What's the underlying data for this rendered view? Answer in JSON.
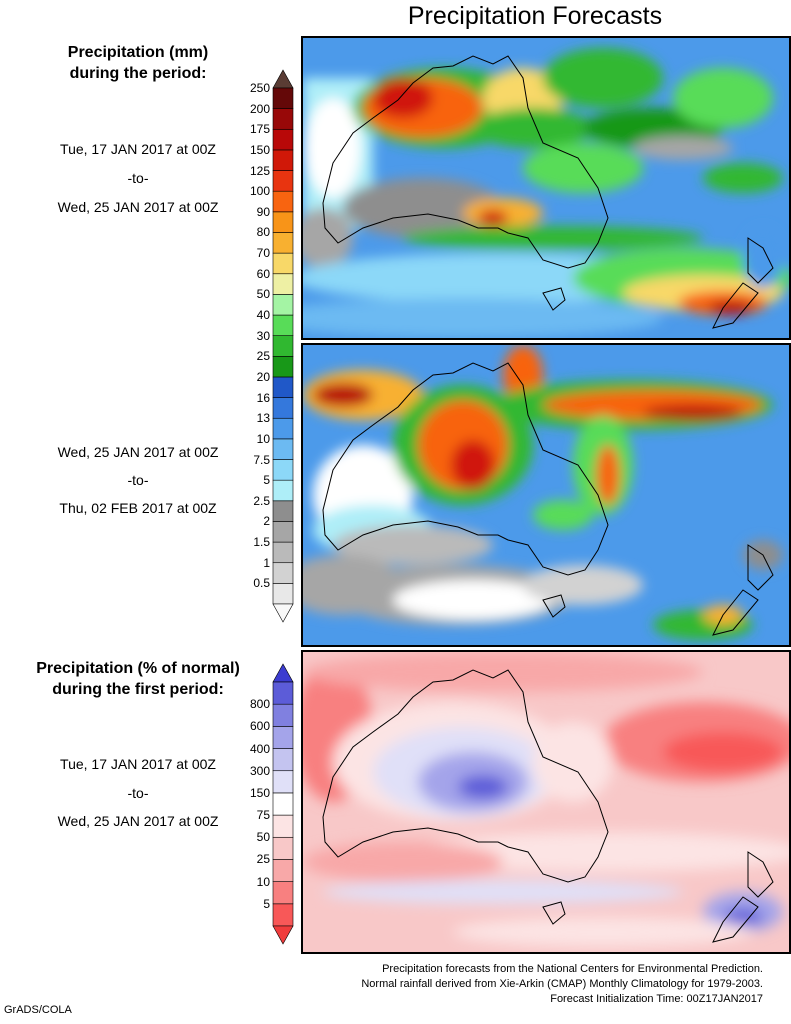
{
  "figure": {
    "title": "Precipitation Forecasts",
    "footer": [
      "Precipitation forecasts from the National Centers for Environmental Prediction.",
      "Normal rainfall derived from Xie-Arkin (CMAP) Monthly Climatology for 1979-2003.",
      "Forecast Initialization Time: 00Z17JAN2017"
    ],
    "brand": "GrADS/COLA"
  },
  "precip_legend": {
    "heading_line1": "Precipitation (mm)",
    "heading_line2": "during the period:",
    "levels": [
      "0.5",
      "1",
      "1.5",
      "2",
      "2.5",
      "5",
      "7.5",
      "10",
      "13",
      "16",
      "20",
      "25",
      "30",
      "40",
      "50",
      "60",
      "70",
      "80",
      "90",
      "100",
      "125",
      "150",
      "175",
      "200",
      "250"
    ],
    "colors": [
      "#e8e8e8",
      "#d2d2d2",
      "#bababa",
      "#a6a6a6",
      "#8e8e8e",
      "#aeeef8",
      "#8cd8f8",
      "#6cbaf2",
      "#4c9aea",
      "#3478dc",
      "#2058c8",
      "#189818",
      "#30b830",
      "#58dc58",
      "#a4f4a4",
      "#eef0a4",
      "#f8d868",
      "#f8b030",
      "#f89418",
      "#f86410",
      "#e83410",
      "#d01808",
      "#b80808",
      "#980808",
      "#640808"
    ],
    "bottom_arrow_color": "#f8f8f8",
    "top_arrow_color": "#5a3c34"
  },
  "period1": {
    "start": "Tue, 17 JAN 2017 at 00Z",
    "sep": "-to-",
    "end": "Wed, 25 JAN 2017 at 00Z"
  },
  "period2": {
    "start": "Wed, 25 JAN 2017 at 00Z",
    "sep": "-to-",
    "end": "Thu, 02 FEB 2017 at 00Z"
  },
  "anomaly_legend": {
    "heading_line1": "Precipitation (% of normal)",
    "heading_line2": "during the first period:",
    "levels": [
      "5",
      "10",
      "25",
      "50",
      "75",
      "150",
      "300",
      "400",
      "600",
      "800"
    ],
    "colors": [
      "#f85858",
      "#f88080",
      "#f8a8a8",
      "#f8c8c8",
      "#fce4e4",
      "#ffffff",
      "#e0e0f8",
      "#c4c4f0",
      "#a4a4ea",
      "#8080e0",
      "#5c5cd8"
    ],
    "bottom_arrow_color": "#f03c3c",
    "top_arrow_color": "#3c3cd0"
  },
  "period3": {
    "start": "Tue, 17 JAN 2017 at 00Z",
    "sep": "-to-",
    "end": "Wed, 25 JAN 2017 at 00Z"
  }
}
